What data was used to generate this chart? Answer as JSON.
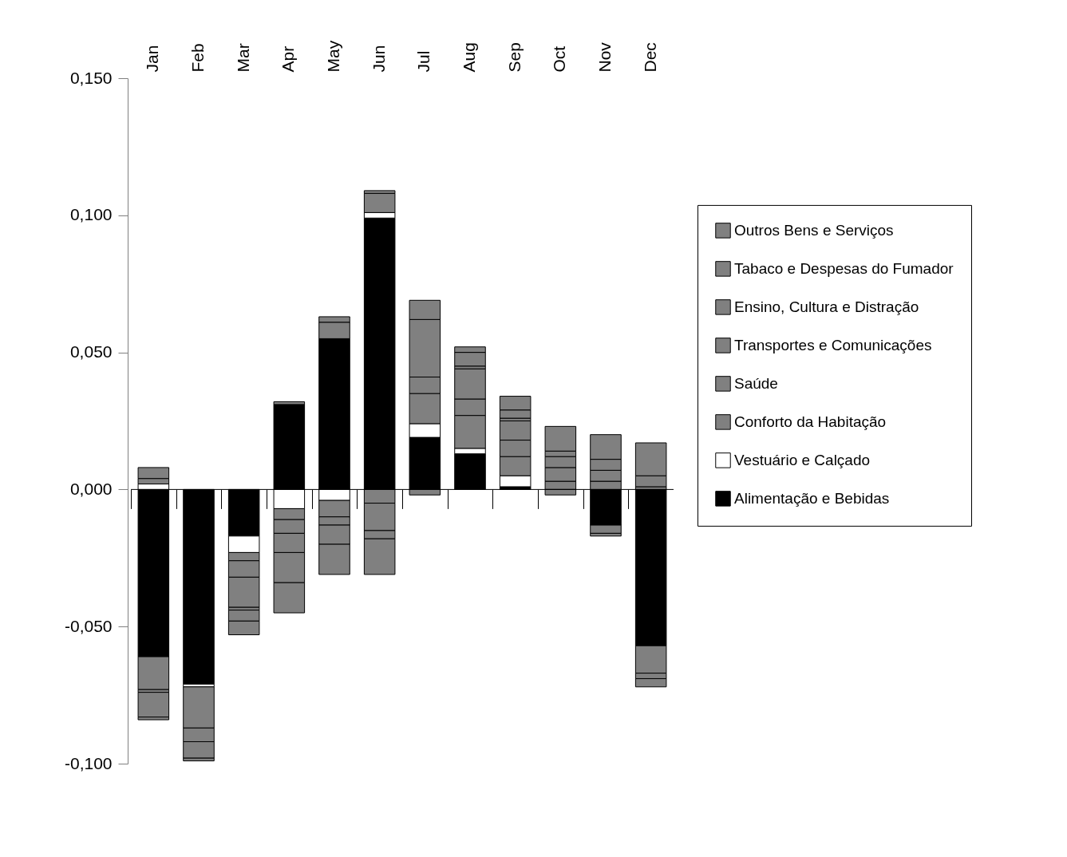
{
  "chart_data": {
    "type": "bar",
    "stacked": true,
    "categories": [
      "Jan",
      "Feb",
      "Mar",
      "Apr",
      "May",
      "Jun",
      "Jul",
      "Aug",
      "Sep",
      "Oct",
      "Nov",
      "Dec"
    ],
    "ylim": [
      -0.1,
      0.15
    ],
    "yticks": [
      {
        "value": -0.1,
        "label": "-0,100"
      },
      {
        "value": -0.05,
        "label": "-0,050"
      },
      {
        "value": 0,
        "label": "0,000"
      },
      {
        "value": 0.05,
        "label": "0,050"
      },
      {
        "value": 0.1,
        "label": "0,100"
      },
      {
        "value": 0.15,
        "label": "0,150"
      }
    ],
    "grid": false,
    "legend": "right",
    "ref_lines": [
      {
        "axis": "y",
        "value": 0
      }
    ],
    "series": [
      {
        "name": "Alimentação e Bebidas",
        "color": "#000000",
        "values": [
          -0.061,
          -0.071,
          -0.017,
          0.031,
          0.055,
          0.099,
          0.019,
          0.013,
          0.001,
          0,
          -0.013,
          -0.057
        ]
      },
      {
        "name": "Vestuário e Calçado",
        "color": "#ffffff",
        "values": [
          0.002,
          -0.001,
          -0.006,
          -0.007,
          -0.004,
          0.002,
          0.005,
          0.002,
          0.004,
          0,
          0,
          0
        ]
      },
      {
        "name": "Conforto da Habitação",
        "color": "#808080",
        "values": [
          -0.012,
          -0.015,
          -0.003,
          -0.004,
          0.006,
          0.007,
          0.011,
          0.012,
          0.007,
          0.003,
          0.003,
          0.001
        ]
      },
      {
        "name": "Saúde",
        "color": "#808080",
        "values": [
          0.002,
          -0.005,
          -0.006,
          -0.005,
          -0.006,
          0.001,
          0.006,
          0.006,
          0.006,
          0.005,
          0.004,
          0.004
        ]
      },
      {
        "name": "Transportes e Comunicações",
        "color": "#808080",
        "values": [
          -0.001,
          -0.006,
          -0.011,
          -0.007,
          -0.003,
          -0.005,
          0.021,
          0.011,
          0.007,
          0.004,
          -0.003,
          0.012
        ]
      },
      {
        "name": "Ensino, Cultura e Distração",
        "color": "#808080",
        "values": [
          -0.009,
          -0.001,
          -0.001,
          -0.011,
          -0.007,
          -0.01,
          0.007,
          0.001,
          0.001,
          0.002,
          0.004,
          -0.01
        ]
      },
      {
        "name": "Tabaco e Despesas do Fumador",
        "color": "#808080",
        "values": [
          0.004,
          0,
          -0.004,
          -0.011,
          -0.011,
          -0.003,
          -0.002,
          0.005,
          0.003,
          0.009,
          -0.001,
          -0.002
        ]
      },
      {
        "name": "Outros Bens e Serviços",
        "color": "#808080",
        "values": [
          -0.001,
          0,
          -0.005,
          0.001,
          0.002,
          -0.013,
          0,
          0.002,
          0.005,
          -0.002,
          0.009,
          -0.003
        ]
      }
    ]
  }
}
